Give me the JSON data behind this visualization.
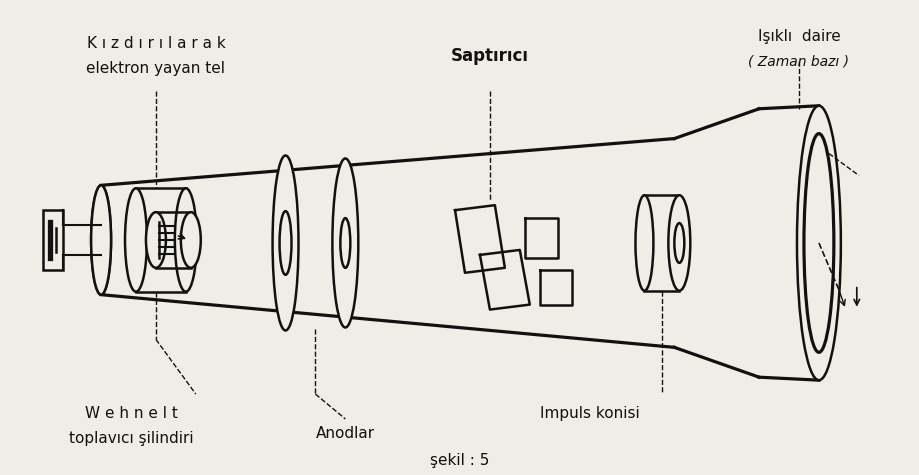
{
  "bg_color": "#f0ede6",
  "line_color": "#111111",
  "title": "şekil : 5",
  "labels": {
    "top_left_1": "K ı z d ı r ı l a r a k",
    "top_left_2": "elektron yayan tel",
    "top_mid": "Saptırıcı",
    "top_right_1": "Işıklı  daire",
    "top_right_2": "( Zaman bazı )",
    "bot_left_1": "W e h n e l t",
    "bot_left_2": "toplavıcı şilindiri",
    "bot_mid": "Anodlar",
    "bot_right": "Impuls konisi"
  }
}
